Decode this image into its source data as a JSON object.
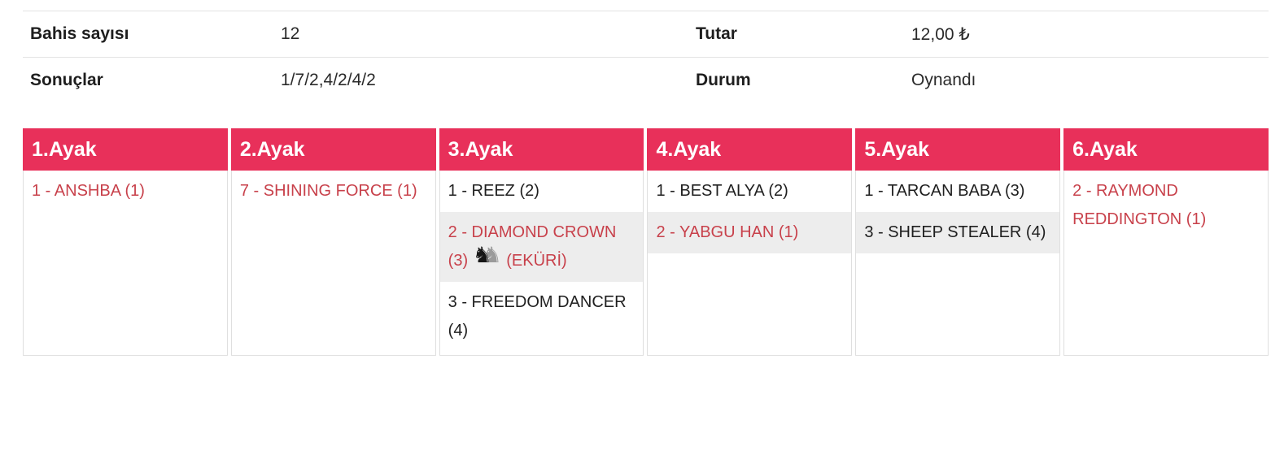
{
  "info": {
    "rows": [
      {
        "label_left": "Bahis sayısı",
        "value_left": "12",
        "label_right": "Tutar",
        "value_right": "12,00 ₺"
      },
      {
        "label_left": "Sonuçlar",
        "value_left": "1/7/2,4/2/4/2",
        "label_right": "Durum",
        "value_right": "Oynandı"
      }
    ]
  },
  "coupon": {
    "legs": [
      {
        "title": "1.Ayak",
        "picks": [
          {
            "text": "1 - ANSHBA (1)"
          }
        ]
      },
      {
        "title": "2.Ayak",
        "picks": [
          {
            "text": "7 - SHINING FORCE (1)"
          }
        ]
      },
      {
        "title": "3.Ayak",
        "picks": [
          {
            "text": "1 - REEZ (2)"
          },
          {
            "text": "2 - DIAMOND CROWN (3)",
            "ekuri_suffix": "(EKÜRİ)"
          },
          {
            "text": "3 - FREEDOM DANCER (4)"
          }
        ]
      },
      {
        "title": "4.Ayak",
        "picks": [
          {
            "text": "1 - BEST ALYA (2)"
          },
          {
            "text": "2 - YABGU HAN (1)"
          }
        ]
      },
      {
        "title": "5.Ayak",
        "picks": [
          {
            "text": "1 - TARCAN BABA (3)"
          },
          {
            "text": "3 - SHEEP STEALER (4)"
          }
        ]
      },
      {
        "title": "6.Ayak",
        "picks": [
          {
            "text": "2 - RAYMOND REDDINGTON (1)"
          }
        ]
      }
    ]
  },
  "icons": {
    "ekuri_glyph": "♞"
  },
  "colors": {
    "header_bg": "#e8305a",
    "selected_text": "#c8414b",
    "row_alt_bg": "#ededed",
    "border": "#dfdfdf",
    "text": "#212121"
  }
}
